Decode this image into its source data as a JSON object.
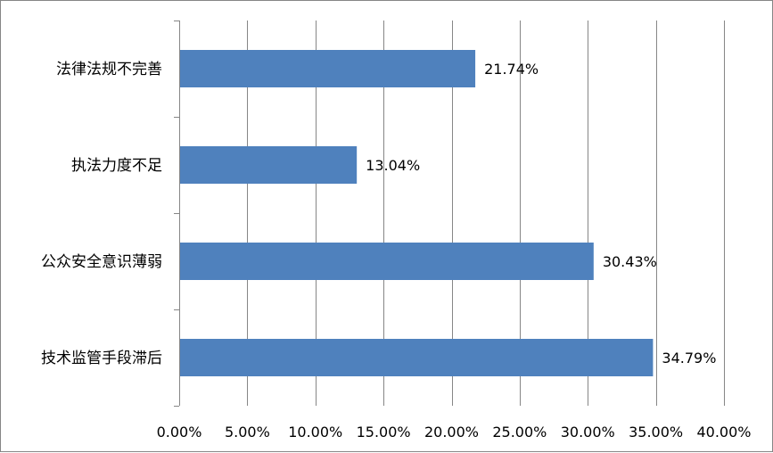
{
  "chart_data": {
    "type": "bar",
    "orientation": "horizontal",
    "categories": [
      "法律法规不完善",
      "执法力度不足",
      "公众安全意识薄弱",
      "技术监管手段滞后"
    ],
    "values": [
      21.74,
      13.04,
      30.43,
      34.79
    ],
    "data_labels": [
      "21.74%",
      "13.04%",
      "30.43%",
      "34.79%"
    ],
    "xlim": [
      0,
      40
    ],
    "x_ticks": [
      0,
      5,
      10,
      15,
      20,
      25,
      30,
      35,
      40
    ],
    "x_tick_labels": [
      "0.00%",
      "5.00%",
      "10.00%",
      "15.00%",
      "20.00%",
      "25.00%",
      "30.00%",
      "35.00%",
      "40.00%"
    ],
    "title": "",
    "xlabel": "",
    "ylabel": "",
    "grid": "vertical",
    "legend": "none",
    "colors": {
      "bar": "#4F81BD",
      "grid": "#868686",
      "axis": "#868686"
    }
  }
}
